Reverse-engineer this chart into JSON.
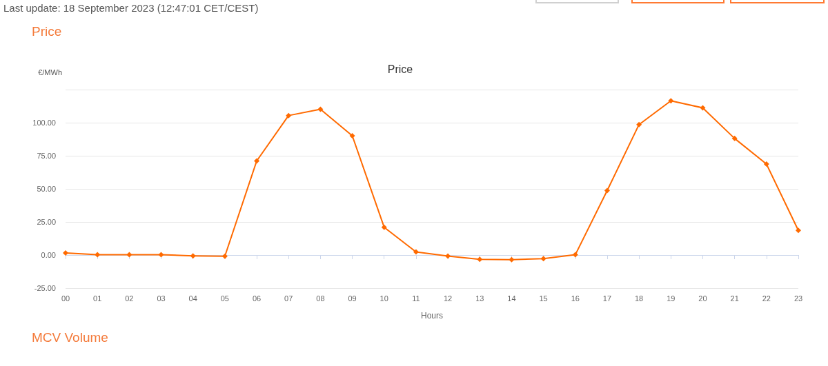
{
  "chart_data": {
    "type": "line",
    "title": "Price",
    "xlabel": "Hours",
    "ylabel": "€/MWh",
    "annotations": [
      "Last update: 18 September 2023 (12:47:01 CET/CEST)",
      "Price",
      "MCV Volume"
    ],
    "categories": [
      "00",
      "01",
      "02",
      "03",
      "04",
      "05",
      "06",
      "07",
      "08",
      "09",
      "10",
      "11",
      "12",
      "13",
      "14",
      "15",
      "16",
      "17",
      "18",
      "19",
      "20",
      "21",
      "22",
      "23"
    ],
    "series": [
      {
        "color": "#ff6a00",
        "values": [
          1.5,
          0.2,
          0.2,
          0.2,
          -0.6,
          -0.9,
          71.1,
          105.4,
          110.2,
          90.1,
          21.0,
          2.3,
          -0.8,
          -3.3,
          -3.5,
          -2.7,
          0.2,
          48.7,
          98.6,
          116.5,
          111.2,
          88.1,
          68.7,
          18.6
        ]
      }
    ],
    "ylim": [
      -25,
      125
    ],
    "yticks": [
      {
        "value": -25,
        "label": "-25.00"
      },
      {
        "value": 0,
        "label": "0.00"
      },
      {
        "value": 25,
        "label": "25.00"
      },
      {
        "value": 50,
        "label": "50.00"
      },
      {
        "value": 75,
        "label": "75.00"
      },
      {
        "value": 100,
        "label": "100.00"
      },
      {
        "value": 125,
        "label": null
      }
    ],
    "grid": "y",
    "marker": "diamond",
    "line_style": "solid"
  }
}
